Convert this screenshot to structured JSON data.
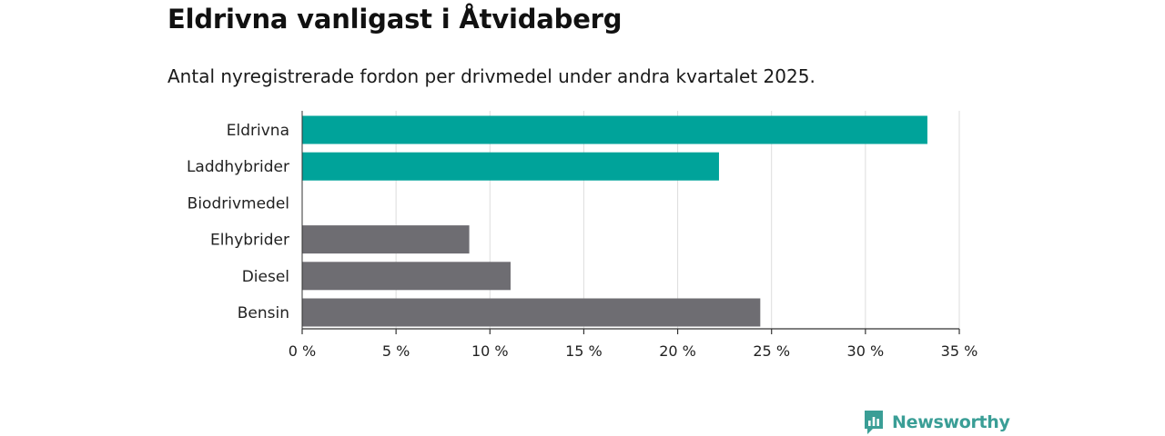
{
  "header": {
    "title": "Eldrivna vanligast i Åtvidaberg",
    "subtitle": "Antal nyregistrerade fordon per drivmedel under andra kvartalet 2025."
  },
  "brand": {
    "name": "Newsworthy",
    "icon": "newsworthy-logo-icon",
    "color": "#3a9e96"
  },
  "colors": {
    "highlight": "#00a39a",
    "other": "#6e6d72",
    "grid": "#dddddd",
    "axis": "#333333"
  },
  "chart_data": {
    "type": "bar",
    "orientation": "horizontal",
    "categories": [
      "Eldrivna",
      "Laddhybrider",
      "Biodrivmedel",
      "Elhybrider",
      "Diesel",
      "Bensin"
    ],
    "values": [
      33.3,
      22.2,
      0,
      8.9,
      11.1,
      24.4
    ],
    "highlight": [
      true,
      true,
      false,
      false,
      false,
      false
    ],
    "unit": "%",
    "xlim": [
      0,
      35
    ],
    "xticks": [
      0,
      5,
      10,
      15,
      20,
      25,
      30,
      35
    ],
    "xtick_labels": [
      "0 %",
      "5 %",
      "10 %",
      "15 %",
      "20 %",
      "25 %",
      "30 %",
      "35 %"
    ],
    "grid": true,
    "legend": "none"
  }
}
